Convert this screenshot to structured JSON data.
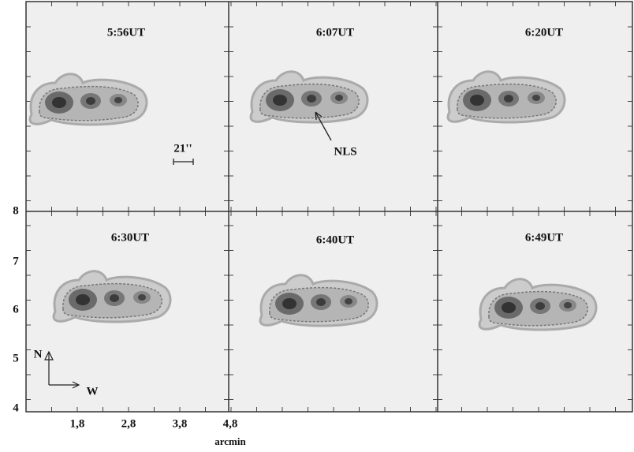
{
  "panels": [
    {
      "label": "5:56UT"
    },
    {
      "label": "6:07UT"
    },
    {
      "label": "6:20UT"
    },
    {
      "label": "6:30UT"
    },
    {
      "label": "6:40UT"
    },
    {
      "label": "6:49UT"
    }
  ],
  "y_axis": {
    "ticks": [
      "8",
      "7",
      "6",
      "5",
      "4"
    ]
  },
  "x_axis": {
    "ticks": [
      "1,8",
      "2,8",
      "3,8",
      "4,8"
    ],
    "label": "arcmin"
  },
  "annotations": {
    "scale": "21''",
    "source": "NLS",
    "north": "N",
    "west": "W"
  }
}
